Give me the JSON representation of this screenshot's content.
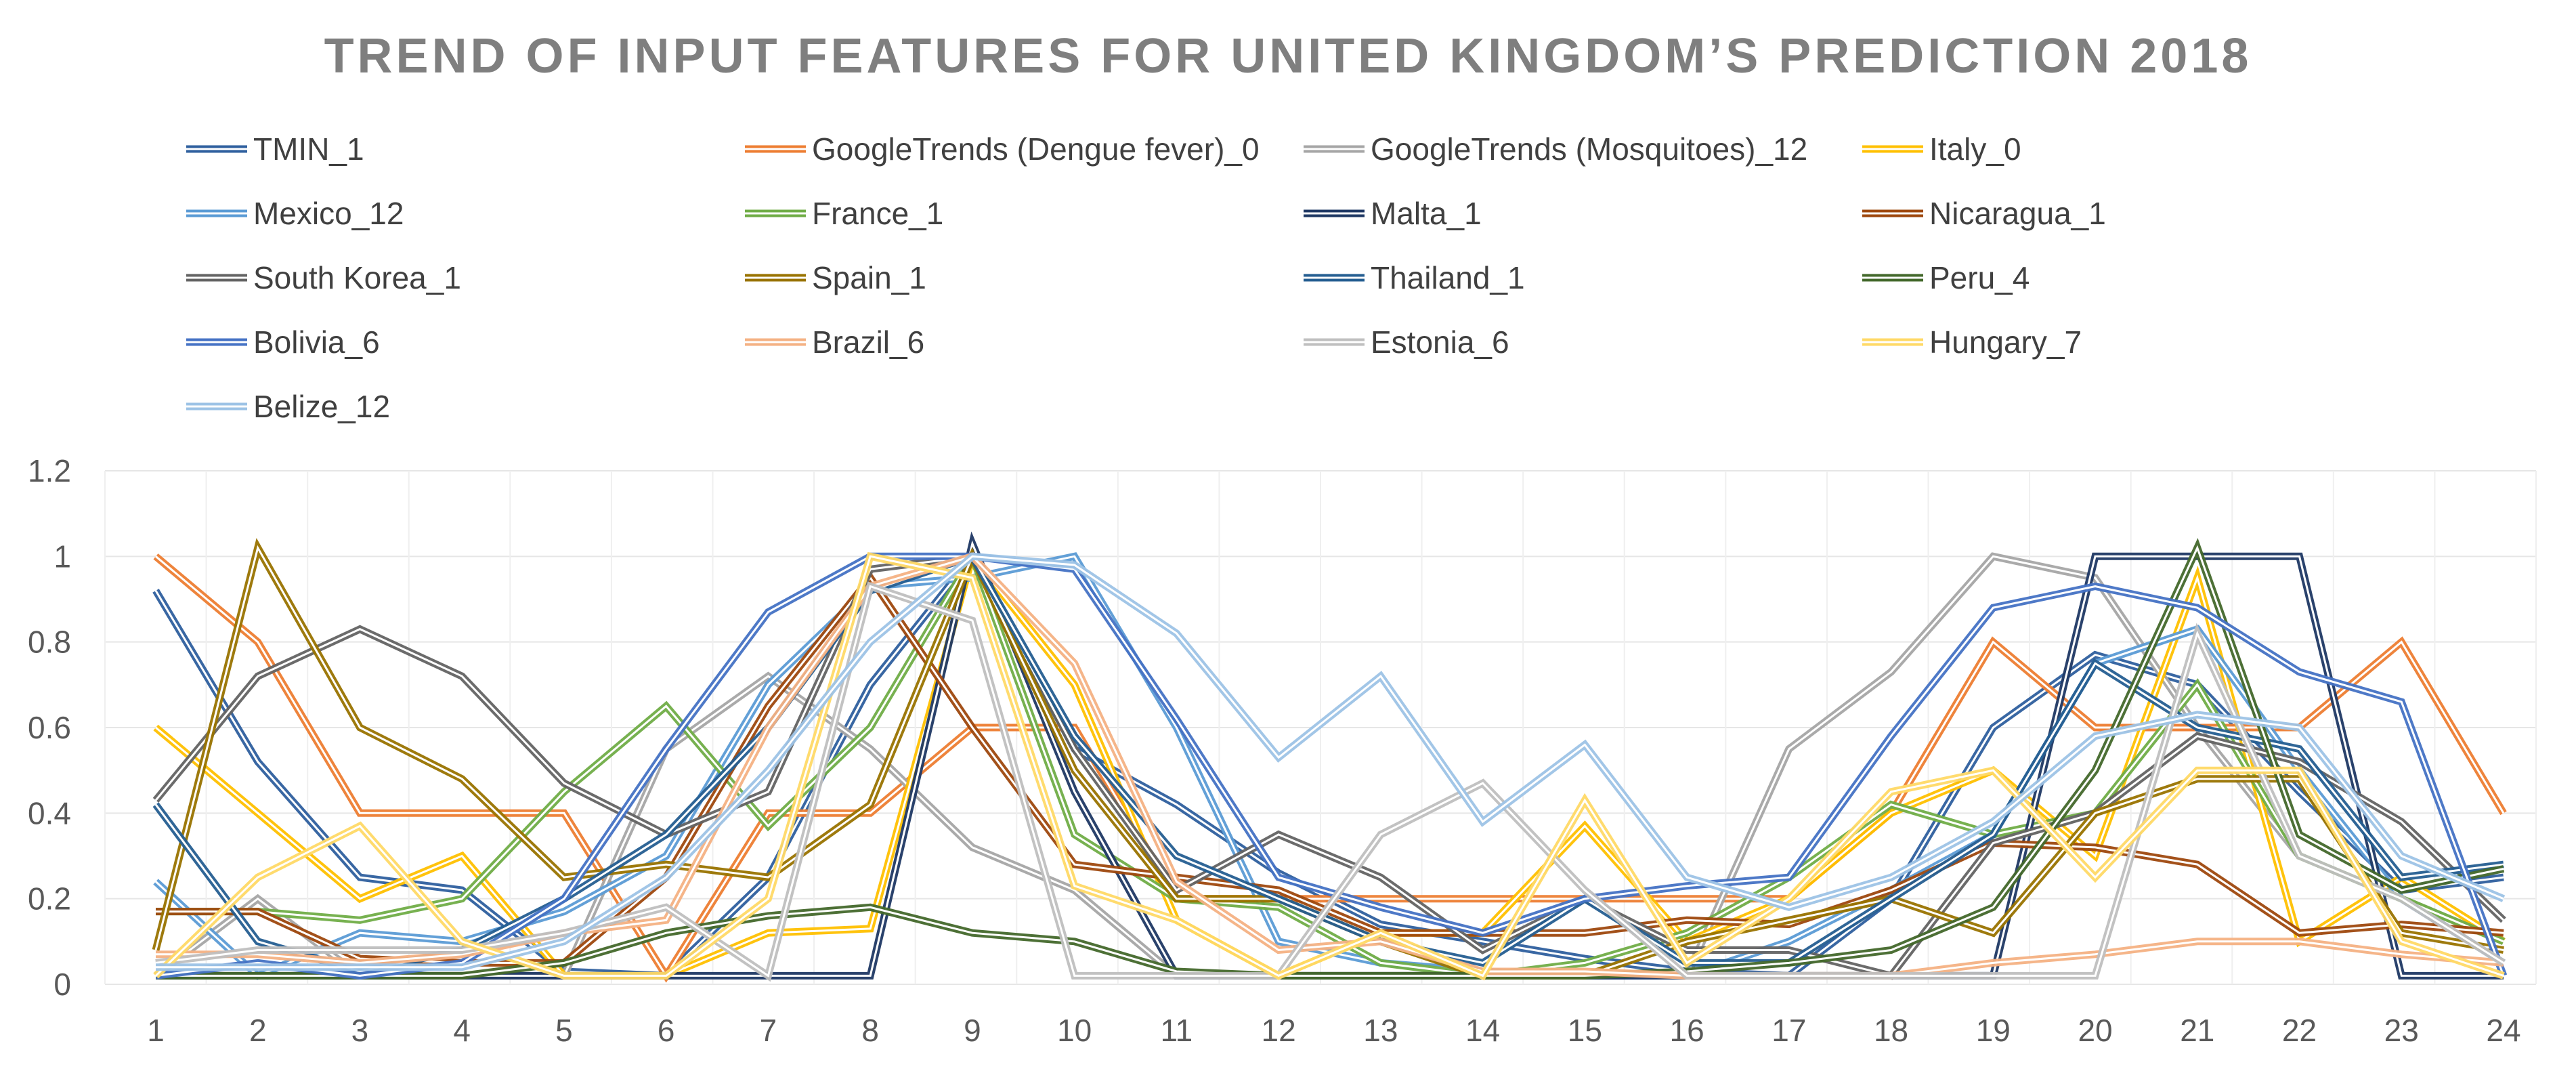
{
  "chart_data": {
    "type": "line",
    "title": "TREND OF INPUT FEATURES FOR UNITED KINGDOM’S PREDICTION 2018",
    "xlabel": "",
    "ylabel": "",
    "categories": [
      "1",
      "2",
      "3",
      "4",
      "5",
      "6",
      "7",
      "8",
      "9",
      "10",
      "11",
      "12",
      "13",
      "14",
      "15",
      "16",
      "17",
      "18",
      "19",
      "20",
      "21",
      "22",
      "23",
      "24"
    ],
    "ylim": [
      0,
      1.2
    ],
    "yticks": [
      "0",
      "0.2",
      "0.4",
      "0.6",
      "0.8",
      "1",
      "1.2"
    ],
    "grid": true,
    "legend_position": "top",
    "series": [
      {
        "name": "TMIN_1",
        "color": "#2e5f9e",
        "values": [
          0.92,
          0.52,
          0.25,
          0.22,
          0.03,
          0.02,
          0.25,
          0.7,
          1.0,
          0.55,
          0.42,
          0.26,
          0.14,
          0.1,
          0.06,
          0.03,
          0.02,
          0.2,
          0.6,
          0.77,
          0.7,
          0.45,
          0.22,
          0.25
        ]
      },
      {
        "name": "GoogleTrends (Dengue fever)_0",
        "color": "#ed7d31",
        "values": [
          1.0,
          0.8,
          0.4,
          0.4,
          0.4,
          0.02,
          0.4,
          0.4,
          0.6,
          0.6,
          0.2,
          0.2,
          0.2,
          0.2,
          0.2,
          0.2,
          0.2,
          0.4,
          0.8,
          0.6,
          0.6,
          0.6,
          0.8,
          0.4
        ]
      },
      {
        "name": "GoogleTrends (Mosquitoes)_12",
        "color": "#a5a5a5",
        "values": [
          0.02,
          0.2,
          0.02,
          0.02,
          0.02,
          0.55,
          0.72,
          0.55,
          0.32,
          0.22,
          0.02,
          0.02,
          0.02,
          0.02,
          0.02,
          0.02,
          0.55,
          0.73,
          1.0,
          0.95,
          0.6,
          0.3,
          0.2,
          0.1
        ]
      },
      {
        "name": "Italy_0",
        "color": "#ffc000",
        "values": [
          0.6,
          0.4,
          0.2,
          0.3,
          0.02,
          0.02,
          0.12,
          0.13,
          1.0,
          0.7,
          0.15,
          0.02,
          0.12,
          0.12,
          0.37,
          0.1,
          0.2,
          0.4,
          0.5,
          0.3,
          0.95,
          0.1,
          0.25,
          0.1
        ]
      },
      {
        "name": "Mexico_12",
        "color": "#5b9bd5",
        "values": [
          0.24,
          0.02,
          0.12,
          0.1,
          0.17,
          0.3,
          0.7,
          0.93,
          0.95,
          1.0,
          0.6,
          0.1,
          0.05,
          0.03,
          0.02,
          0.02,
          0.1,
          0.22,
          0.35,
          0.75,
          0.83,
          0.5,
          0.2,
          0.05
        ]
      },
      {
        "name": "France_1",
        "color": "#70ad47",
        "values": [
          0.17,
          0.17,
          0.15,
          0.2,
          0.45,
          0.65,
          0.37,
          0.6,
          1.0,
          0.35,
          0.2,
          0.18,
          0.05,
          0.02,
          0.05,
          0.12,
          0.25,
          0.42,
          0.35,
          0.4,
          0.7,
          0.3,
          0.2,
          0.1
        ]
      },
      {
        "name": "Malta_1",
        "color": "#1f3864",
        "values": [
          0.02,
          0.02,
          0.02,
          0.02,
          0.02,
          0.02,
          0.02,
          0.02,
          1.03,
          0.45,
          0.02,
          0.02,
          0.02,
          0.02,
          0.02,
          0.02,
          0.02,
          0.02,
          0.02,
          1.0,
          1.0,
          1.0,
          0.02,
          0.02
        ]
      },
      {
        "name": "Nicaragua_1",
        "color": "#9e480e",
        "values": [
          0.17,
          0.17,
          0.06,
          0.05,
          0.05,
          0.25,
          0.65,
          0.95,
          0.6,
          0.28,
          0.25,
          0.22,
          0.12,
          0.12,
          0.12,
          0.15,
          0.14,
          0.22,
          0.33,
          0.32,
          0.28,
          0.12,
          0.14,
          0.12
        ]
      },
      {
        "name": "South Korea_1",
        "color": "#636363",
        "values": [
          0.43,
          0.72,
          0.83,
          0.72,
          0.47,
          0.35,
          0.45,
          0.97,
          1.0,
          0.55,
          0.22,
          0.35,
          0.25,
          0.08,
          0.2,
          0.08,
          0.08,
          0.02,
          0.33,
          0.4,
          0.58,
          0.52,
          0.38,
          0.15
        ]
      },
      {
        "name": "Spain_1",
        "color": "#997300",
        "values": [
          0.08,
          1.02,
          0.6,
          0.48,
          0.25,
          0.28,
          0.25,
          0.42,
          1.0,
          0.5,
          0.2,
          0.2,
          0.1,
          0.02,
          0.02,
          0.1,
          0.15,
          0.2,
          0.12,
          0.4,
          0.48,
          0.48,
          0.12,
          0.08
        ]
      },
      {
        "name": "Thailand_1",
        "color": "#255e91",
        "values": [
          0.42,
          0.1,
          0.03,
          0.08,
          0.2,
          0.35,
          0.6,
          0.92,
          1.0,
          0.58,
          0.3,
          0.2,
          0.1,
          0.05,
          0.2,
          0.05,
          0.05,
          0.2,
          0.35,
          0.75,
          0.6,
          0.55,
          0.25,
          0.28
        ]
      },
      {
        "name": "Peru_4",
        "color": "#43682b",
        "values": [
          0.02,
          0.02,
          0.02,
          0.02,
          0.05,
          0.12,
          0.16,
          0.18,
          0.12,
          0.1,
          0.03,
          0.02,
          0.02,
          0.02,
          0.02,
          0.03,
          0.05,
          0.08,
          0.18,
          0.5,
          1.02,
          0.35,
          0.22,
          0.27
        ]
      },
      {
        "name": "Bolivia_6",
        "color": "#4472c4",
        "values": [
          0.02,
          0.05,
          0.02,
          0.05,
          0.2,
          0.55,
          0.87,
          1.0,
          1.0,
          0.97,
          0.62,
          0.25,
          0.18,
          0.12,
          0.2,
          0.23,
          0.25,
          0.58,
          0.88,
          0.93,
          0.88,
          0.73,
          0.66,
          0.02
        ]
      },
      {
        "name": "Brazil_6",
        "color": "#f4b183",
        "values": [
          0.07,
          0.07,
          0.05,
          0.07,
          0.12,
          0.15,
          0.6,
          0.93,
          1.0,
          0.75,
          0.24,
          0.08,
          0.1,
          0.03,
          0.03,
          0.02,
          0.02,
          0.02,
          0.05,
          0.07,
          0.1,
          0.1,
          0.07,
          0.05
        ]
      },
      {
        "name": "Estonia_6",
        "color": "#bfbfbf",
        "values": [
          0.05,
          0.08,
          0.08,
          0.08,
          0.12,
          0.18,
          0.02,
          0.93,
          0.85,
          0.02,
          0.02,
          0.02,
          0.35,
          0.47,
          0.22,
          0.02,
          0.02,
          0.02,
          0.02,
          0.02,
          0.82,
          0.3,
          0.2,
          0.05
        ]
      },
      {
        "name": "Hungary_7",
        "color": "#ffd966",
        "values": [
          0.02,
          0.25,
          0.37,
          0.1,
          0.02,
          0.02,
          0.2,
          1.0,
          0.95,
          0.23,
          0.15,
          0.02,
          0.12,
          0.02,
          0.43,
          0.05,
          0.2,
          0.45,
          0.5,
          0.25,
          0.5,
          0.5,
          0.1,
          0.02
        ]
      },
      {
        "name": "Belize_12",
        "color": "#9dc3e6",
        "values": [
          0.04,
          0.04,
          0.04,
          0.04,
          0.1,
          0.25,
          0.5,
          0.8,
          1.0,
          0.98,
          0.82,
          0.53,
          0.72,
          0.38,
          0.56,
          0.25,
          0.18,
          0.25,
          0.38,
          0.58,
          0.63,
          0.6,
          0.3,
          0.2
        ]
      }
    ]
  }
}
